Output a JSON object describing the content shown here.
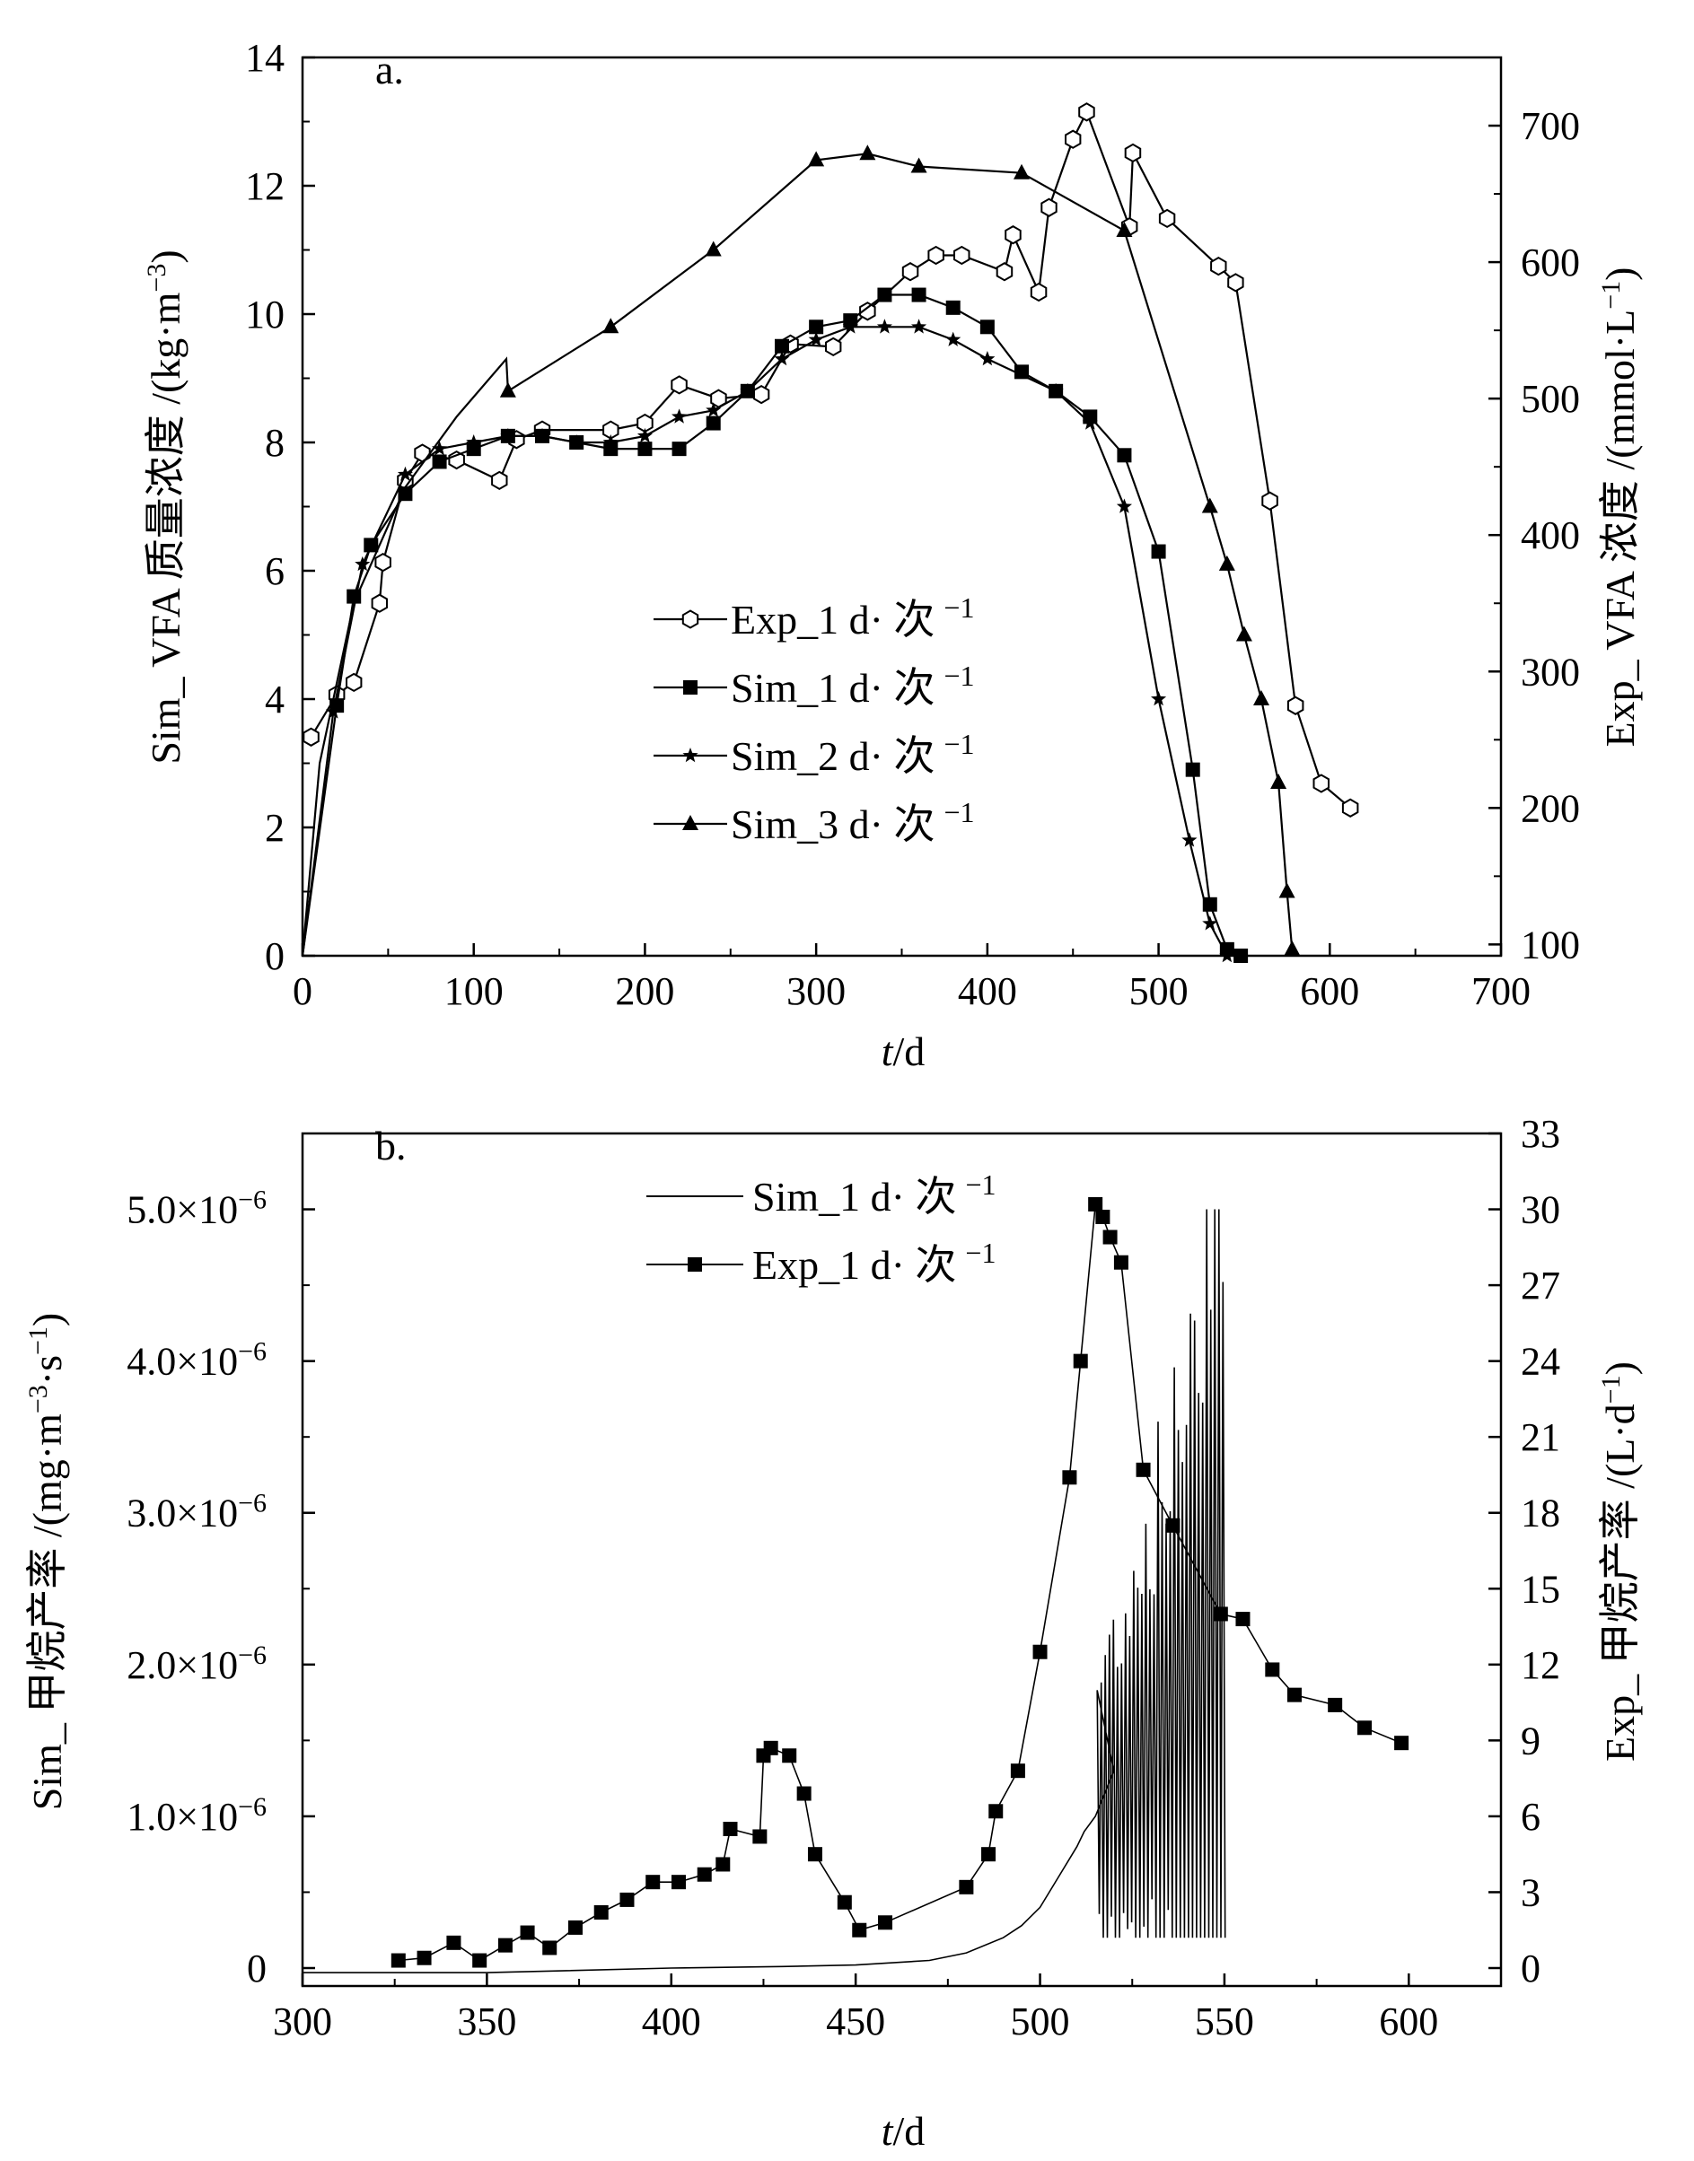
{
  "chart_data": [
    {
      "type": "line",
      "panel": "a.",
      "xlabel_var": "t",
      "xlabel_unit": "/d",
      "ylabel_left": "Sim_ VFA 质量浓度 /(kg·m",
      "ylabel_left_exp": "−3",
      "ylabel_left_close": ")",
      "ylabel_right": "Exp_ VFA 浓度 /(mmol·L",
      "ylabel_right_exp": "−1",
      "ylabel_right_close": ")",
      "xlim": [
        0,
        700
      ],
      "ylim_left": [
        0,
        14
      ],
      "ylim_right": [
        91.7,
        750
      ],
      "x_ticks": [
        "0",
        "100",
        "200",
        "300",
        "400",
        "500",
        "600",
        "700"
      ],
      "y_ticks_left": [
        "0",
        "2",
        "4",
        "6",
        "8",
        "10",
        "12",
        "14"
      ],
      "y_ticks_right": [
        "100",
        "200",
        "300",
        "400",
        "500",
        "600",
        "700"
      ],
      "legend": [
        {
          "label": "Exp_1 d· 次",
          "sup": "−1",
          "marker": "hexagon"
        },
        {
          "label": "Sim_1 d· 次",
          "sup": "−1",
          "marker": "square"
        },
        {
          "label": "Sim_2 d· 次",
          "sup": "−1",
          "marker": "star"
        },
        {
          "label": "Sim_3 d· 次",
          "sup": "−1",
          "marker": "triangle"
        }
      ],
      "series": [
        {
          "name": "Exp_1 d· 次⁻¹",
          "axis": "right",
          "x": [
            5,
            20,
            30,
            45,
            47,
            60,
            70,
            90,
            115,
            125,
            140,
            180,
            200,
            220,
            243,
            268,
            285,
            310,
            330,
            355,
            370,
            385,
            410,
            415,
            430,
            436,
            450,
            458,
            483,
            485,
            505,
            535,
            545,
            565,
            580,
            595,
            612
          ],
          "y": [
            252,
            283,
            292,
            350,
            380,
            440,
            460,
            455,
            440,
            470,
            477,
            477,
            482,
            510,
            500,
            503,
            540,
            538,
            564,
            593,
            605,
            605,
            593,
            620,
            578,
            640,
            690,
            710,
            626,
            680,
            632,
            597,
            585,
            425,
            275,
            218,
            200
          ]
        },
        {
          "name": "Sim_1 d· 次⁻¹",
          "axis": "left",
          "x": [
            20,
            30,
            40,
            60,
            80,
            100,
            120,
            140,
            160,
            180,
            200,
            220,
            240,
            260,
            280,
            300,
            320,
            340,
            360,
            380,
            400,
            420,
            440,
            460,
            480,
            500,
            520,
            530,
            540,
            548
          ],
          "y": [
            3.9,
            5.6,
            6.4,
            7.2,
            7.7,
            7.9,
            8.1,
            8.1,
            8.0,
            7.9,
            7.9,
            7.9,
            8.3,
            8.8,
            9.5,
            9.8,
            9.9,
            10.3,
            10.3,
            10.1,
            9.8,
            9.1,
            8.8,
            8.4,
            7.8,
            6.3,
            2.9,
            0.8,
            0.1,
            0.0
          ]
        },
        {
          "name": "Sim_2 d· 次⁻¹",
          "axis": "left",
          "x": [
            18,
            35,
            60,
            80,
            100,
            120,
            140,
            160,
            180,
            200,
            220,
            240,
            260,
            280,
            300,
            320,
            340,
            360,
            380,
            400,
            440,
            460,
            480,
            500,
            518,
            530,
            540
          ],
          "y": [
            3.8,
            6.1,
            7.5,
            7.9,
            8.0,
            8.1,
            8.1,
            8.0,
            8.0,
            8.1,
            8.4,
            8.5,
            8.8,
            9.3,
            9.6,
            9.8,
            9.8,
            9.8,
            9.6,
            9.3,
            8.8,
            8.3,
            7.0,
            4.0,
            1.8,
            0.5,
            0.0
          ]
        },
        {
          "name": "Sim_3 d· 次⁻¹",
          "axis": "left",
          "x": [
            120,
            180,
            240,
            300,
            330,
            360,
            420,
            480,
            530,
            540,
            550,
            560,
            570,
            575,
            578
          ],
          "y": [
            8.8,
            9.8,
            11.0,
            12.4,
            12.5,
            12.3,
            12.2,
            11.3,
            7.0,
            6.1,
            5.0,
            4.0,
            2.7,
            1.0,
            0.1
          ]
        }
      ]
    },
    {
      "type": "line",
      "panel": "b.",
      "xlabel_var": "t",
      "xlabel_unit": "/d",
      "ylabel_left": "Sim_ 甲烷产率 /(mg·m",
      "ylabel_left_exp": "−3",
      "ylabel_left_mid": "·s",
      "ylabel_left_exp2": "−1",
      "ylabel_left_close": ")",
      "ylabel_right": "Exp_ 甲烷产率 /(L·d",
      "ylabel_right_exp": "−1",
      "ylabel_right_close": ")",
      "xlim": [
        300,
        625
      ],
      "ylim_left": [
        0,
        5.5e-06
      ],
      "ylim_right": [
        0,
        33
      ],
      "x_ticks": [
        "300",
        "350",
        "400",
        "450",
        "500",
        "550",
        "600"
      ],
      "y_ticks_left": [
        {
          "base": "0",
          "exp": ""
        },
        {
          "base": "1.0×10",
          "exp": "−6"
        },
        {
          "base": "2.0×10",
          "exp": "−6"
        },
        {
          "base": "3.0×10",
          "exp": "−6"
        },
        {
          "base": "4.0×10",
          "exp": "−6"
        },
        {
          "base": "5.0×10",
          "exp": "−6"
        }
      ],
      "y_ticks_right": [
        "0",
        "3",
        "6",
        "9",
        "12",
        "15",
        "18",
        "21",
        "24",
        "27",
        "30",
        "33"
      ],
      "legend": [
        {
          "label": "Sim_1 d· 次",
          "sup": "−1",
          "marker": "line"
        },
        {
          "label": "Exp_1 d· 次",
          "sup": "−1",
          "marker": "square"
        }
      ],
      "series": [
        {
          "name": "Sim_1 d· 次⁻¹",
          "axis": "left",
          "x": [
            300,
            350,
            400,
            430,
            450,
            470,
            480,
            490,
            495,
            500,
            505,
            510,
            512,
            515,
            520
          ],
          "y": [
            -3e-08,
            -3e-08,
            0,
            1e-08,
            2e-08,
            5e-08,
            1e-07,
            2e-07,
            2.8e-07,
            4e-07,
            6e-07,
            8e-07,
            9e-07,
            1e-06,
            1.3e-06
          ],
          "oscillation": {
            "x_range": [
              515,
              550
            ],
            "peak": 5e-06,
            "note": "strong oscillation up to ~5.0×10^-6 near t≈548"
          }
        },
        {
          "name": "Exp_1 d· 次⁻¹",
          "axis": "right",
          "x": [
            326,
            333,
            341,
            348,
            355,
            361,
            367,
            374,
            381,
            388,
            395,
            402,
            409,
            414,
            416,
            424,
            425,
            427,
            432,
            436,
            439,
            447,
            451,
            458,
            480,
            486,
            488,
            494,
            500,
            508,
            511,
            515,
            517,
            519,
            522,
            528,
            536,
            549,
            555,
            563,
            569,
            580,
            588,
            598
          ],
          "y": [
            0.3,
            0.4,
            1.0,
            0.3,
            0.9,
            1.4,
            0.8,
            1.6,
            2.2,
            2.7,
            3.4,
            3.4,
            3.7,
            4.1,
            5.5,
            5.2,
            8.4,
            8.7,
            8.4,
            6.9,
            4.5,
            2.6,
            1.5,
            1.8,
            3.2,
            4.5,
            6.2,
            7.8,
            12.5,
            19.4,
            24.0,
            30.2,
            29.7,
            28.9,
            27.9,
            19.7,
            17.5,
            14.0,
            13.8,
            11.8,
            10.8,
            10.4,
            9.5,
            8.9
          ]
        }
      ]
    }
  ]
}
